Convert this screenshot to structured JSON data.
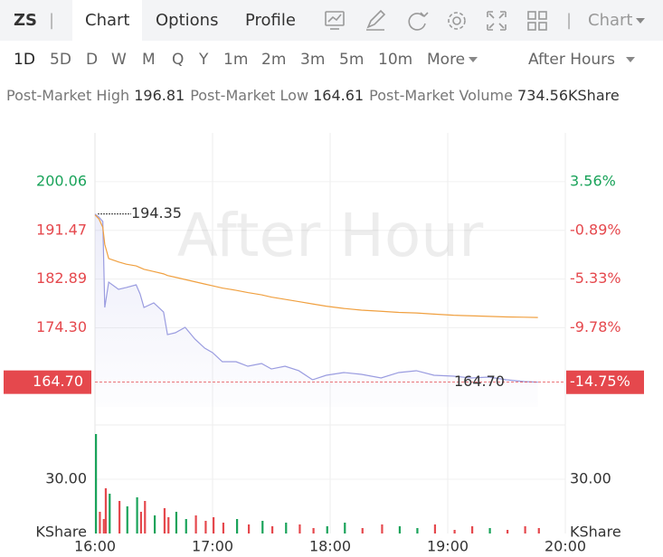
{
  "nav": {
    "symbol": "ZS",
    "tabs": [
      "Chart",
      "Options",
      "Profile"
    ],
    "chart_menu": "Chart"
  },
  "periods": [
    "1D",
    "5D",
    "D",
    "W",
    "M",
    "Q",
    "Y",
    "1m",
    "2m",
    "3m",
    "5m",
    "10m"
  ],
  "more": "More",
  "session": "After Hours",
  "stats": [
    {
      "label": "Post-Market High",
      "value": "196.81"
    },
    {
      "label": "Post-Market Low",
      "value": "164.61"
    },
    {
      "label": "Post-Market Volume",
      "value": "734.56KShare"
    }
  ],
  "chart_data": {
    "type": "line",
    "watermark": "After Hour",
    "x": [
      "16:00",
      "16:02",
      "16:04",
      "16:05",
      "16:07",
      "16:12",
      "16:16",
      "16:21",
      "16:23",
      "16:25",
      "16:30",
      "16:35",
      "16:37",
      "16:41",
      "16:46",
      "16:51",
      "16:56",
      "17:00",
      "17:05",
      "17:12",
      "17:18",
      "17:25",
      "17:30",
      "17:37",
      "17:44",
      "17:51",
      "17:58",
      "18:07",
      "18:16",
      "18:26",
      "18:35",
      "18:44",
      "18:53",
      "19:03",
      "19:12",
      "19:21",
      "19:30",
      "19:39",
      "19:46"
    ],
    "series": [
      {
        "color": "#9a9ce0",
        "values": [
          194.35,
          193.82,
          193.03,
          177.88,
          182.34,
          181.07,
          181.39,
          181.86,
          180.27,
          177.88,
          178.68,
          177.08,
          173.09,
          173.41,
          174.37,
          172.3,
          170.7,
          169.91,
          168.31,
          168.31,
          167.51,
          167.99,
          167.03,
          167.51,
          166.72,
          165.12,
          165.92,
          166.4,
          166.08,
          165.44,
          166.4,
          166.72,
          165.92,
          165.76,
          165.44,
          165.6,
          165.12,
          164.8,
          164.7
        ]
      },
      {
        "color": "#f0a040",
        "values": [
          194.2,
          193.5,
          192.0,
          189.0,
          186.5,
          185.9,
          185.5,
          185.2,
          184.9,
          184.6,
          184.2,
          183.8,
          183.5,
          183.2,
          182.8,
          182.4,
          182.0,
          181.7,
          181.3,
          180.9,
          180.5,
          180.1,
          179.7,
          179.3,
          178.9,
          178.5,
          178.1,
          177.7,
          177.4,
          177.2,
          177.0,
          176.9,
          176.7,
          176.5,
          176.4,
          176.3,
          176.2,
          176.15,
          176.1
        ]
      }
    ],
    "volume": {
      "values": [
        55,
        12,
        8,
        25,
        22,
        18,
        15,
        20,
        12,
        18,
        10,
        14,
        9,
        12,
        8,
        10,
        7,
        9,
        6,
        8,
        5,
        7,
        4,
        6,
        5,
        3,
        4,
        6,
        3,
        5,
        4,
        3,
        5,
        2,
        4,
        3,
        2,
        4,
        3
      ],
      "vlim": [
        0,
        60
      ],
      "vticks": [
        {
          "value": 30,
          "label": "30.00"
        }
      ],
      "unit": "KShare"
    },
    "xlim": [
      "16:00",
      "20:00"
    ],
    "xticks": [
      "16:00",
      "17:00",
      "18:00",
      "19:00",
      "20:00"
    ],
    "ylim": [
      157.15,
      208.65
    ],
    "yticks": [
      200.06,
      191.47,
      182.89,
      {
        "value": 174.3,
        "label": "174.30"
      }
    ],
    "y2lim": [
      -18.65,
      8.01
    ],
    "y2ticks": [
      {
        "value": 3.56,
        "label": "3.56%"
      },
      {
        "value": -0.89,
        "label": "-0.89%"
      },
      {
        "value": -5.33,
        "label": "-5.33%"
      },
      {
        "value": -9.78,
        "label": "-9.78%"
      }
    ],
    "high_label": 194.35,
    "last_price": {
      "value": 164.7,
      "label": "164.70"
    },
    "last_change": {
      "value": -14.75,
      "label": "-14.75%"
    },
    "up_color": "#1aa35a",
    "down_color": "#e5484d",
    "grid": true
  }
}
